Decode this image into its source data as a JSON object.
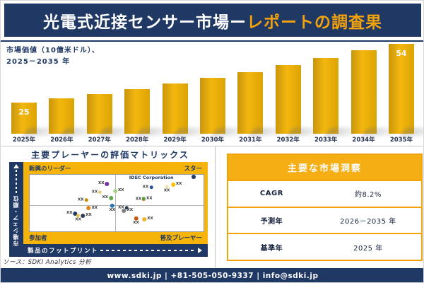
{
  "header": {
    "title_main": "光電式近接センサー市場ー",
    "title_accent": "レポートの調査果"
  },
  "chart": {
    "subtitle_line1": "市場価値（10億米ドル）、",
    "subtitle_line2": "2025－2035 年"
  },
  "chart_data": [
    {
      "type": "bar",
      "title": "市場価値（10億米ドル）、2025－2035 年",
      "categories": [
        "2025年",
        "2026年",
        "2027年",
        "2028年",
        "2029年",
        "2030年",
        "2031年",
        "2032年",
        "2033年",
        "2034年",
        "2035年"
      ],
      "values": [
        25,
        27,
        29.3,
        31.7,
        34.3,
        37.1,
        40.1,
        43.4,
        47,
        50.8,
        54
      ],
      "data_labels_shown": {
        "2025年": "25",
        "2035年": "54"
      },
      "xlabel": "",
      "ylabel": "",
      "ylim": [
        0,
        60
      ],
      "grid": false,
      "bar_color": "#E8AC0C"
    },
    {
      "type": "scatter",
      "title": "主要プレーヤーの評価マトリックス",
      "xlabel": "製品のフットプリント",
      "ylabel": "市場シェア・順位",
      "quadrants": {
        "top_left": "新興のリーダー",
        "top_right": "スター",
        "bottom_left": "参加者",
        "bottom_right": "普及プレーヤー"
      },
      "annotation": "IDEC Corporation",
      "points": [
        {
          "x": 30.6,
          "y": 44.8,
          "color": "#BF9000",
          "size": 5,
          "label": "XX",
          "label_pos": "left"
        },
        {
          "x": 38.6,
          "y": 30.9,
          "color": "#E6D27C",
          "size": 5,
          "label": "XX",
          "label_pos": "left"
        },
        {
          "x": 42.6,
          "y": 16.4,
          "color": "#7030A0",
          "size": 6,
          "label": "XX",
          "label_pos": "left"
        },
        {
          "x": 44.8,
          "y": 40.7,
          "color": "#5BA646",
          "size": 6,
          "label": "XX",
          "label_pos": "left"
        },
        {
          "x": 51.1,
          "y": 28.8,
          "color": "#A9D18E",
          "size": 6,
          "label": "XX",
          "label_pos": "right"
        },
        {
          "x": 67.9,
          "y": 22.6,
          "color": "#2E5395",
          "size": 5,
          "label": "XX",
          "label_pos": "left"
        },
        {
          "x": 78.9,
          "y": 24.7,
          "color": "#EFE3A8",
          "size": 5,
          "label": "XX",
          "label_pos": "below"
        },
        {
          "x": 84.4,
          "y": 17.7,
          "color": "#FFC000",
          "size": 6,
          "label": "XX",
          "label_pos": "right"
        },
        {
          "x": 63.8,
          "y": 43.2,
          "color": "#ED7D31",
          "size": 5,
          "label": "XX",
          "label_pos": "left"
        },
        {
          "x": 67.6,
          "y": 42.0,
          "color": "#549E39",
          "size": 5,
          "label": "XX",
          "label_pos": "right"
        },
        {
          "x": 94.5,
          "y": 3.7,
          "color": "#1F3864",
          "size": 6,
          "label": "",
          "label_pos": "none"
        },
        {
          "x": 24.3,
          "y": 68.3,
          "color": "#1F3864",
          "size": 6,
          "label": "XX",
          "label_pos": "left"
        },
        {
          "x": 27.9,
          "y": 76.5,
          "color": "#E8C34A",
          "size": 5,
          "label": "XX",
          "label_pos": "below"
        },
        {
          "x": 32.5,
          "y": 72.5,
          "color": "#333F50",
          "size": 6,
          "label": "XX",
          "label_pos": "right"
        },
        {
          "x": 35.9,
          "y": 59.3,
          "color": "#E08214",
          "size": 6,
          "label": "XX",
          "label_pos": "right"
        },
        {
          "x": 47.5,
          "y": 58.9,
          "color": "#2E75B6",
          "size": 6,
          "label": "XX",
          "label_pos": "below"
        },
        {
          "x": 53.8,
          "y": 58.4,
          "color": "#243B55",
          "size": 5,
          "label": "XX",
          "label_pos": "left"
        },
        {
          "x": 56.2,
          "y": 63.8,
          "color": "#808080",
          "size": 6,
          "label": "XX",
          "label_pos": "right"
        },
        {
          "x": 61.2,
          "y": 81.1,
          "color": "#C55A11",
          "size": 6,
          "label": "XX",
          "label_pos": "below"
        },
        {
          "x": 67.9,
          "y": 78.9,
          "color": "#EDB120",
          "size": 6,
          "label": "XX",
          "label_pos": "right"
        }
      ]
    }
  ],
  "insights": {
    "title": "主要な市場洞察",
    "rows": [
      {
        "label": "CAGR",
        "value": "約8.2%"
      },
      {
        "label": "予測年",
        "value": "2026－2035 年"
      },
      {
        "label": "基準年",
        "value": "2025 年"
      }
    ]
  },
  "source": "ソース：SDKI Analytics 分析",
  "footer": "www.sdki.jp | +81-505-050-9337 | info@sdki.jp",
  "colors": {
    "navy": "#1F3864",
    "gold_accent": "#F2A20D",
    "panel_gold": "#F6B40A",
    "bar_gold": "#E8AC0C",
    "white": "#FFFFFF"
  }
}
